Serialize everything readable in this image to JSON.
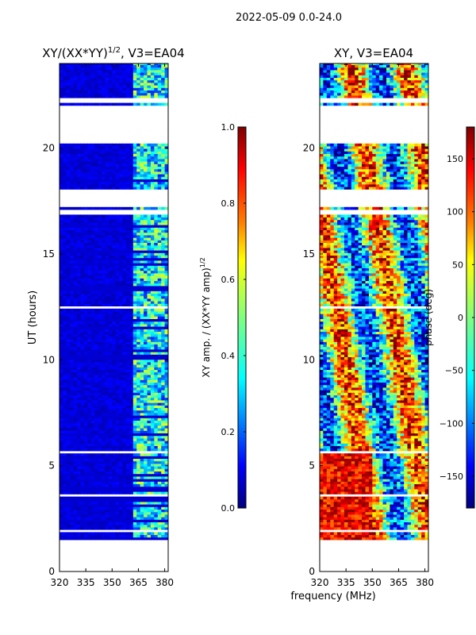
{
  "suptitle": "2022-05-09 0.0-24.0",
  "xlabel_shared": "frequency (MHz)",
  "colors": {
    "jet": [
      "#00007f",
      "#0000ff",
      "#007fff",
      "#00ffff",
      "#7fff7f",
      "#ffff00",
      "#ff7f00",
      "#ff0000",
      "#7f0000"
    ]
  },
  "chart_data": [
    {
      "type": "heatmap",
      "title_main": "XY/(XX*YY)",
      "title_sup": "1/2",
      "title_rest": ", V3=EA04",
      "xlabel": "",
      "ylabel": "UT (hours)",
      "xlim": [
        320,
        382
      ],
      "ylim": [
        0,
        24
      ],
      "xticks": [
        320,
        335,
        350,
        365,
        380
      ],
      "yticks": [
        0,
        5,
        10,
        15,
        20
      ],
      "data_coverage_hours": [
        1.5,
        24.0
      ],
      "colorbar": {
        "label_main": "XY amp. / (XX*YY amp)",
        "label_sup": "1/2",
        "range": [
          0.0,
          1.0
        ],
        "ticks": [
          "0.0",
          "0.2",
          "0.4",
          "0.6",
          "0.8",
          "1.0"
        ]
      }
    },
    {
      "type": "heatmap",
      "title": "XY, V3=EA04",
      "xlabel": "frequency (MHz)",
      "ylabel": "",
      "xlim": [
        320,
        382
      ],
      "ylim": [
        0,
        24
      ],
      "xticks": [
        320,
        335,
        350,
        365,
        380
      ],
      "yticks": [
        0,
        5,
        10,
        15,
        20
      ],
      "data_coverage_hours": [
        1.5,
        24.0
      ],
      "colorbar": {
        "label": "phase (deg)",
        "range": [
          -180,
          180
        ],
        "ticks": [
          "150",
          "100",
          "50",
          "0",
          "−50",
          "−100",
          "−150"
        ]
      }
    }
  ]
}
